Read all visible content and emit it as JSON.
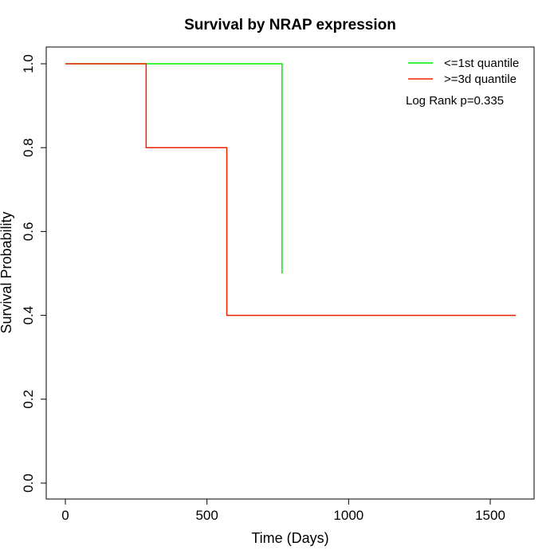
{
  "chart_data": {
    "type": "line",
    "subtype": "kaplan-meier-step",
    "title": "Survival by NRAP expression",
    "xlabel": "Time (Days)",
    "ylabel": "Survival Probability",
    "xlim": [
      0,
      1590
    ],
    "ylim": [
      0,
      1
    ],
    "xticks": [
      0,
      500,
      1000,
      1500
    ],
    "yticks": [
      0.0,
      0.2,
      0.4,
      0.6,
      0.8,
      1.0
    ],
    "xtick_labels": [
      "0",
      "500",
      "1000",
      "1500"
    ],
    "ytick_labels": [
      "0.0",
      "0.2",
      "0.4",
      "0.6",
      "0.8",
      "1.0"
    ],
    "grid": false,
    "legend_position": "top-right",
    "series": [
      {
        "name": "<=1st quantile",
        "color": "#00ee00",
        "x": [
          0,
          765,
          765
        ],
        "y": [
          1.0,
          1.0,
          0.5
        ]
      },
      {
        "name": ">=3d quantile",
        "color": "#ee2200",
        "x": [
          0,
          285,
          285,
          570,
          570,
          1590
        ],
        "y": [
          1.0,
          1.0,
          0.8,
          0.8,
          0.4,
          0.4
        ]
      }
    ],
    "annotations": [
      "Log Rank p=0.335"
    ]
  }
}
